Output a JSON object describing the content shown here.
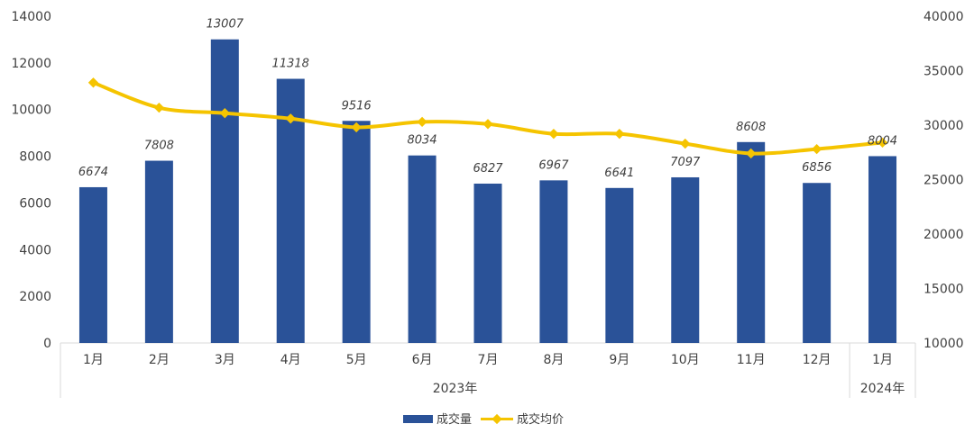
{
  "chart_data": {
    "type": "bar",
    "categories": [
      "1月",
      "2月",
      "3月",
      "4月",
      "5月",
      "6月",
      "7月",
      "8月",
      "9月",
      "10月",
      "11月",
      "12月",
      "1月"
    ],
    "groups": [
      {
        "label": "2023年",
        "count": 12
      },
      {
        "label": "2024年",
        "count": 1
      }
    ],
    "series": [
      {
        "name": "成交量",
        "type": "bar",
        "axis": "left",
        "color": "#2A5298",
        "values": [
          6674,
          7808,
          13007,
          11318,
          9516,
          8034,
          6827,
          6967,
          6641,
          7097,
          8608,
          6856,
          8004
        ],
        "labels": [
          "6674",
          "7808",
          "13007",
          "11318",
          "9516",
          "8034",
          "6827",
          "6967",
          "6641",
          "7097",
          "8608",
          "6856",
          "8004"
        ]
      },
      {
        "name": "成交均价",
        "type": "line",
        "axis": "right",
        "color": "#F5C400",
        "values": [
          33900,
          31600,
          31100,
          30600,
          29800,
          30300,
          30100,
          29200,
          29200,
          28300,
          27400,
          27800,
          28400
        ]
      }
    ],
    "yleft": {
      "min": 0,
      "max": 14000,
      "ticks": [
        "0",
        "2000",
        "4000",
        "6000",
        "8000",
        "10000",
        "12000",
        "14000"
      ]
    },
    "yright": {
      "min": 10000,
      "max": 40000,
      "ticks": [
        "10000",
        "15000",
        "20000",
        "25000",
        "30000",
        "35000",
        "40000"
      ]
    },
    "grid": false,
    "legend_position": "bottom"
  }
}
